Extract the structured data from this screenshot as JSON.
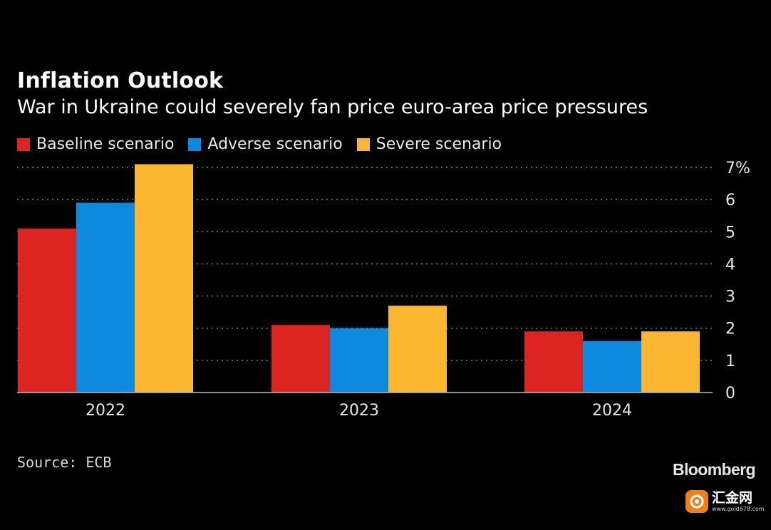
{
  "header": {
    "title": "Inflation Outlook",
    "subtitle": "War in Ukraine could severely fan price euro-area price pressures"
  },
  "legend": [
    {
      "label": "Baseline scenario",
      "color": "#dc2420"
    },
    {
      "label": "Adverse scenario",
      "color": "#0d8ade"
    },
    {
      "label": "Severe scenario",
      "color": "#fbb731"
    }
  ],
  "chart_data": {
    "type": "bar",
    "categories": [
      "2022",
      "2023",
      "2024"
    ],
    "series": [
      {
        "name": "Baseline scenario",
        "color": "#dc2420",
        "values": [
          5.1,
          2.1,
          1.9
        ]
      },
      {
        "name": "Adverse scenario",
        "color": "#0d8ade",
        "values": [
          5.9,
          2.0,
          1.6
        ]
      },
      {
        "name": "Severe scenario",
        "color": "#fbb731",
        "values": [
          7.1,
          2.7,
          1.9
        ]
      }
    ],
    "title": "Inflation Outlook",
    "subtitle": "War in Ukraine could severely fan price euro-area price pressures",
    "xlabel": "",
    "ylabel": "",
    "ylim": [
      0,
      7
    ],
    "y_ticks": [
      "0",
      "1",
      "2",
      "3",
      "4",
      "5",
      "6",
      "7%"
    ],
    "grid": true,
    "y_axis_side": "right",
    "legend_position": "top-left"
  },
  "footer": {
    "source": "Source: ECB",
    "brand": "Bloomberg"
  },
  "watermark": {
    "name": "汇金网",
    "url": "www.gold678.com"
  }
}
